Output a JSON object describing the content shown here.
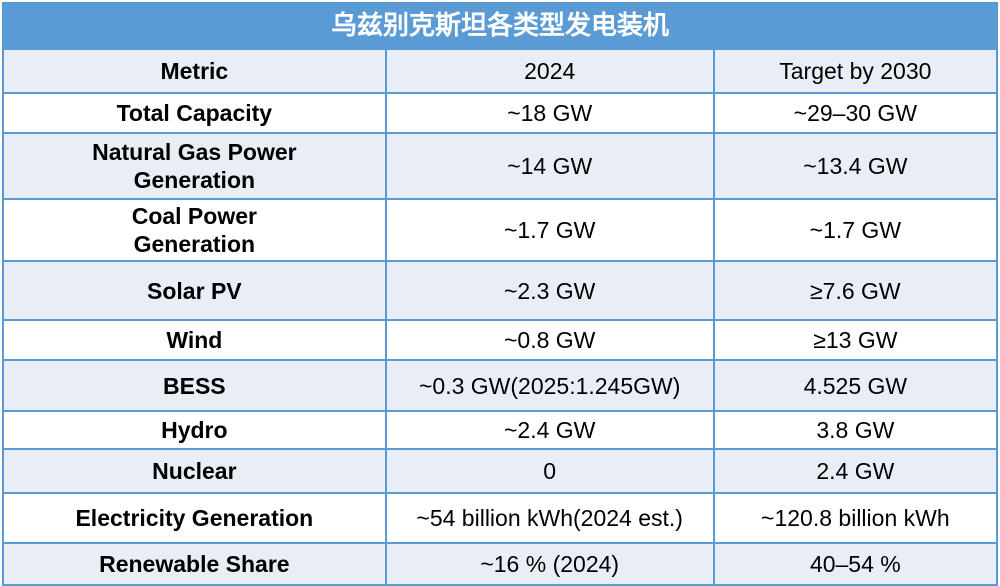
{
  "title": "乌兹别克斯坦各类型发电装机",
  "colors": {
    "title_bg": "#5B9BD5",
    "border": "#5B9BD5",
    "band_bg": "#E9EDF6",
    "title_text": "#FFFFFF",
    "body_text": "#000000",
    "row_bg": "#FFFFFF"
  },
  "table": {
    "columns": [
      "Metric",
      "2024",
      "Target by 2030"
    ],
    "rows": [
      {
        "metric": "Total Capacity",
        "v2024": "~18 GW",
        "target": "~29–30 GW"
      },
      {
        "metric": "Natural Gas Power Generation",
        "v2024": "~14 GW",
        "target": "~13.4 GW"
      },
      {
        "metric": "Coal Power Generation",
        "v2024": "~1.7 GW",
        "target": "~1.7 GW"
      },
      {
        "metric": "Solar PV",
        "v2024": "~2.3 GW",
        "target": "≥7.6 GW"
      },
      {
        "metric": "Wind",
        "v2024": "~0.8 GW",
        "target": "≥13 GW"
      },
      {
        "metric": "BESS",
        "v2024": "~0.3 GW(2025:1.245GW)",
        "target": "4.525 GW"
      },
      {
        "metric": "Hydro",
        "v2024": "~2.4 GW",
        "target": "3.8 GW"
      },
      {
        "metric": "Nuclear",
        "v2024": "0",
        "target": "2.4 GW"
      },
      {
        "metric": "Electricity Generation",
        "v2024": "~54 billion kWh(2024 est.)",
        "target": "~120.8 billion kWh"
      },
      {
        "metric": "Renewable Share",
        "v2024": "~16 % (2024)",
        "target": "40–54 %"
      }
    ]
  }
}
